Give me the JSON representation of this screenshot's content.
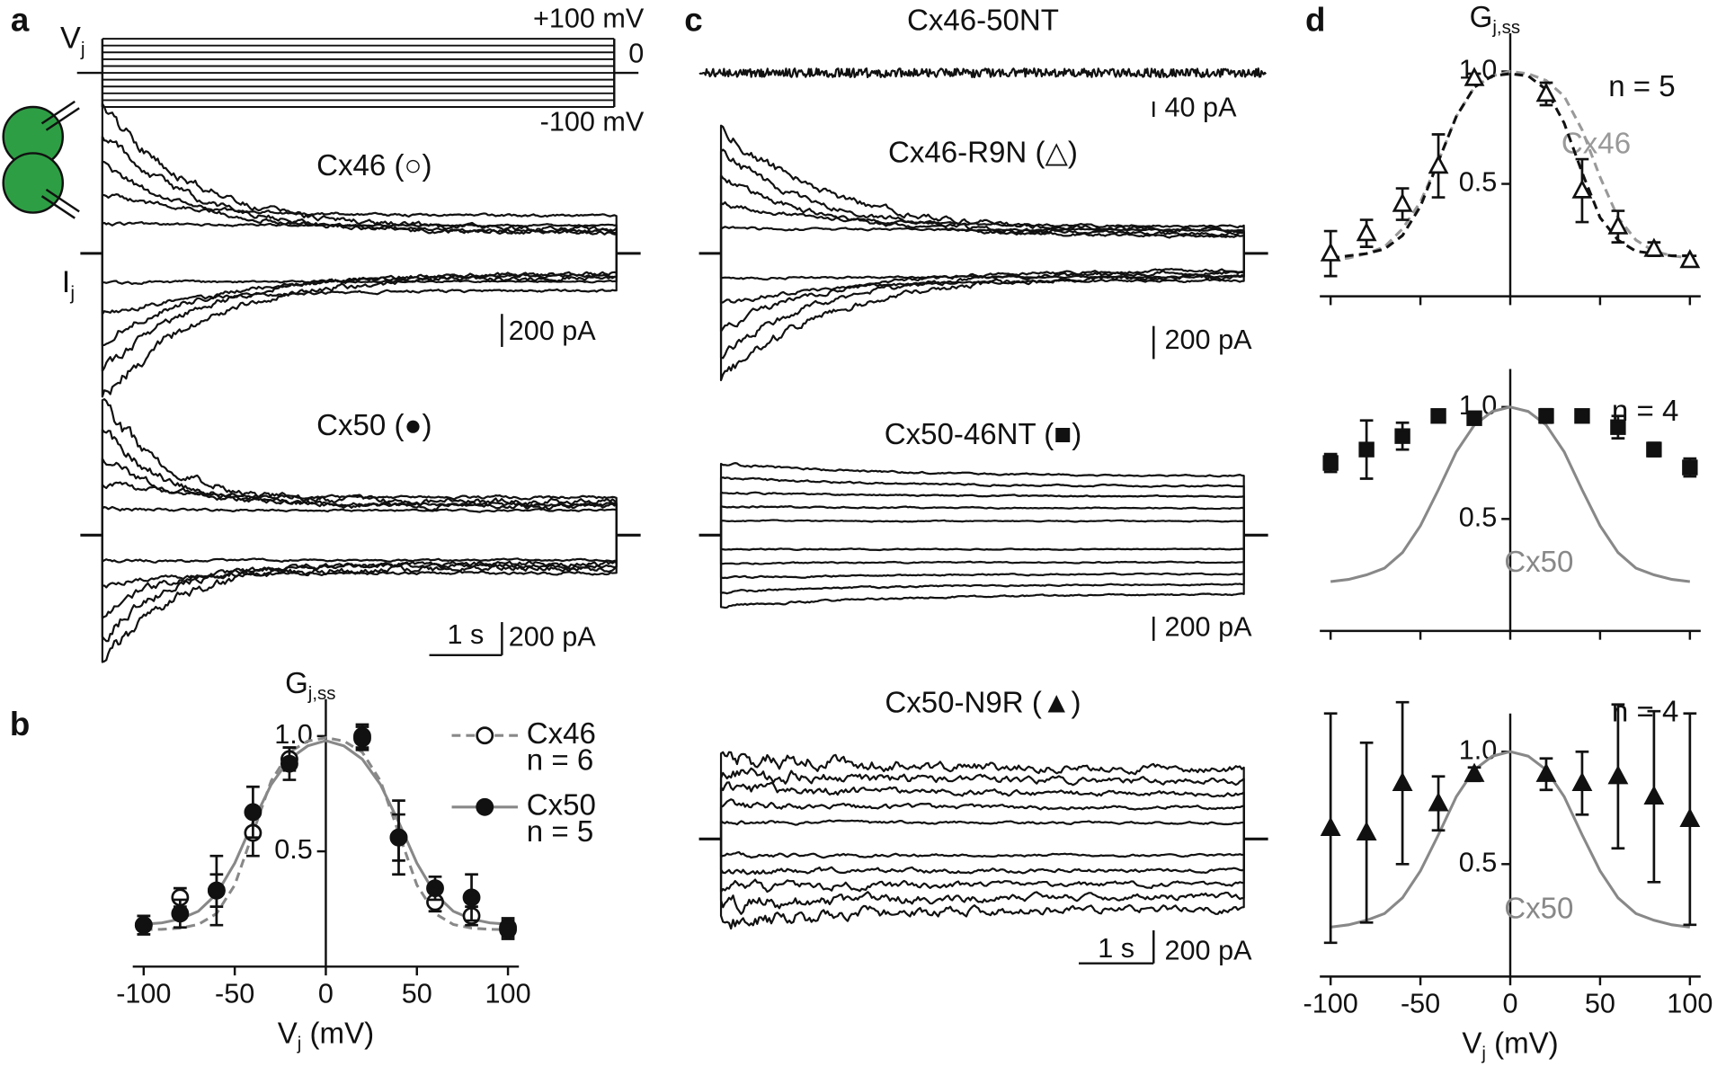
{
  "figure": {
    "panel_labels": [
      "a",
      "b",
      "c",
      "d"
    ],
    "protocol": {
      "label": {
        "main": "V",
        "sub": "j"
      },
      "top": "+100 mV",
      "zero": "0",
      "bottom": "-100 mV"
    },
    "current_label": {
      "main": "I",
      "sub": "j"
    },
    "traces": [
      {
        "title": "Cx46 (○)",
        "scale_y": "200 pA"
      },
      {
        "title": "Cx50 (●)",
        "scale_y": "200 pA",
        "scale_x": "1 s"
      },
      {
        "title": "Cx46-50NT",
        "scale_y": "40 pA"
      },
      {
        "title": "Cx46-R9N (△)",
        "scale_y": "200 pA"
      },
      {
        "title": "Cx50-46NT (■)",
        "scale_y": "200 pA"
      },
      {
        "title": "Cx50-N9R (▲)",
        "scale_y": "200 pA",
        "scale_x": "1 s"
      }
    ]
  },
  "chart_data": [
    {
      "type": "scatter",
      "ylabel": {
        "main": "G",
        "sub": "j,ss"
      },
      "xlabel": {
        "main": "V",
        "sub": "j",
        "rest": " (mV)"
      },
      "xlim": [
        -106,
        106
      ],
      "ylim": [
        0,
        1.16
      ],
      "xticks": [
        -100,
        -50,
        0,
        50,
        100
      ],
      "yticks": [
        0.5,
        {
          "value": 1,
          "label": "1.0"
        }
      ],
      "xtick_labels": true,
      "legend": "upper right",
      "x": [
        -100,
        -80,
        -60,
        -40,
        -20,
        20,
        40,
        60,
        80,
        100
      ],
      "fit_x": [
        -100,
        -90,
        -80,
        -70,
        -60,
        -50,
        -40,
        -30,
        -20,
        -10,
        0,
        10,
        20,
        30,
        40,
        50,
        60,
        70,
        80,
        90,
        100
      ],
      "series": [
        {
          "name": "Cx46",
          "n": "n = 6",
          "marker": "open-circle",
          "color": "#111111",
          "values": [
            0.18,
            0.3,
            0.33,
            0.58,
            0.9,
            0.99,
            0.56,
            0.28,
            0.22,
            0.17
          ],
          "errors": [
            0.04,
            0.04,
            0.07,
            0.1,
            0.05,
            0.05,
            0.1,
            0.04,
            0.04,
            0.04
          ],
          "fit": [
            0.161,
            0.162,
            0.167,
            0.183,
            0.23,
            0.354,
            0.58,
            0.806,
            0.93,
            0.978,
            0.993,
            0.978,
            0.93,
            0.806,
            0.58,
            0.354,
            0.23,
            0.183,
            0.167,
            0.162,
            0.161
          ],
          "fit_color": "#888888",
          "fit_dash": true
        },
        {
          "name": "Cx50",
          "n": "n = 5",
          "marker": "filled-circle",
          "color": "#111111",
          "values": [
            0.18,
            0.23,
            0.33,
            0.67,
            0.88,
            1.0,
            0.56,
            0.34,
            0.3,
            0.16
          ],
          "errors": [
            0.04,
            0.06,
            0.15,
            0.11,
            0.07,
            0.05,
            0.16,
            0.05,
            0.1,
            0.04
          ],
          "fit": [
            0.184,
            0.19,
            0.206,
            0.24,
            0.315,
            0.449,
            0.627,
            0.79,
            0.9,
            0.957,
            0.98,
            0.957,
            0.9,
            0.79,
            0.627,
            0.449,
            0.315,
            0.24,
            0.206,
            0.19,
            0.184
          ],
          "fit_color": "#888888",
          "fit_dash": false
        }
      ]
    },
    {
      "type": "scatter",
      "ylabel": {
        "main": "G",
        "sub": "j,ss"
      },
      "xlim": [
        -106,
        106
      ],
      "ylim": [
        0,
        1.17
      ],
      "xticks": [
        -100,
        -50,
        0,
        50,
        100
      ],
      "yticks": [
        0.5,
        {
          "value": 1,
          "label": "1.0"
        }
      ],
      "xtick_labels": false,
      "annotation": "n = 5",
      "x": [
        -100,
        -80,
        -60,
        -40,
        -20,
        20,
        40,
        60,
        80,
        100
      ],
      "fit_x": [
        -100,
        -90,
        -80,
        -70,
        -60,
        -50,
        -40,
        -30,
        -20,
        -10,
        0,
        10,
        20,
        30,
        40,
        50,
        60,
        70,
        80,
        90,
        100
      ],
      "series": [
        {
          "marker": "open-triangle",
          "color": "#111111",
          "values": [
            0.19,
            0.28,
            0.41,
            0.58,
            0.97,
            0.9,
            0.47,
            0.31,
            0.21,
            0.16
          ],
          "errors": [
            0.1,
            0.06,
            0.07,
            0.14,
            0.02,
            0.05,
            0.14,
            0.07,
            0.03,
            0.02
          ]
        }
      ],
      "fits": [
        {
          "label": "Cx46",
          "color": "#999999",
          "dash": true,
          "values": [
            0.16,
            0.17,
            0.19,
            0.22,
            0.3,
            0.42,
            0.6,
            0.8,
            0.93,
            0.98,
            1.0,
            0.99,
            0.96,
            0.89,
            0.74,
            0.53,
            0.35,
            0.25,
            0.2,
            0.18,
            0.17
          ]
        },
        {
          "color": "#111111",
          "dash": true,
          "values": [
            0.17,
            0.18,
            0.19,
            0.21,
            0.27,
            0.4,
            0.6,
            0.8,
            0.93,
            0.98,
            0.99,
            0.98,
            0.92,
            0.77,
            0.55,
            0.35,
            0.25,
            0.2,
            0.19,
            0.18,
            0.18
          ]
        }
      ]
    },
    {
      "type": "scatter",
      "xlim": [
        -106,
        106
      ],
      "ylim": [
        0,
        1.17
      ],
      "xticks": [
        -100,
        -50,
        0,
        50,
        100
      ],
      "yticks": [
        0.5,
        {
          "value": 1,
          "label": "1.0"
        }
      ],
      "xtick_labels": false,
      "annotation": "n = 4",
      "x": [
        -100,
        -80,
        -60,
        -40,
        -20,
        20,
        40,
        60,
        80,
        100
      ],
      "fit_x": [
        -100,
        -90,
        -80,
        -70,
        -60,
        -50,
        -40,
        -30,
        -20,
        -10,
        0,
        10,
        20,
        30,
        40,
        50,
        60,
        70,
        80,
        90,
        100
      ],
      "series": [
        {
          "marker": "filled-square",
          "color": "#111111",
          "values": [
            0.75,
            0.81,
            0.87,
            0.96,
            0.95,
            0.96,
            0.96,
            0.91,
            0.81,
            0.73
          ],
          "errors": [
            0.04,
            0.13,
            0.06,
            0.01,
            0.01,
            0.03,
            0.01,
            0.05,
            0.03,
            0.04
          ]
        }
      ],
      "fits": [
        {
          "label": "Cx50",
          "color": "#888888",
          "dash": false,
          "values": [
            0.22,
            0.23,
            0.25,
            0.28,
            0.35,
            0.47,
            0.63,
            0.8,
            0.92,
            0.98,
            1.0,
            0.98,
            0.92,
            0.8,
            0.63,
            0.47,
            0.35,
            0.28,
            0.25,
            0.23,
            0.22
          ]
        }
      ]
    },
    {
      "type": "scatter",
      "xlabel": {
        "main": "V",
        "sub": "j",
        "rest": " (mV)"
      },
      "xlim": [
        -106,
        106
      ],
      "ylim": [
        0,
        1.17
      ],
      "xticks": [
        -100,
        -50,
        0,
        50,
        100
      ],
      "yticks": [
        0.5,
        {
          "value": 1,
          "label": "1.0"
        }
      ],
      "xtick_labels": true,
      "annotation": "n = 4",
      "x": [
        -100,
        -80,
        -60,
        -40,
        -20,
        20,
        40,
        60,
        80,
        100
      ],
      "fit_x": [
        -100,
        -90,
        -80,
        -70,
        -60,
        -50,
        -40,
        -30,
        -20,
        -10,
        0,
        10,
        20,
        30,
        40,
        50,
        60,
        70,
        80,
        90,
        100
      ],
      "series": [
        {
          "marker": "filled-triangle",
          "color": "#111111",
          "values": [
            0.66,
            0.64,
            0.86,
            0.77,
            0.9,
            0.9,
            0.86,
            0.89,
            0.8,
            0.7
          ],
          "errors": [
            0.51,
            0.4,
            0.36,
            0.12,
            0.03,
            0.07,
            0.14,
            0.32,
            0.38,
            0.47
          ]
        }
      ],
      "fits": [
        {
          "label": "Cx50",
          "color": "#888888",
          "dash": false,
          "values": [
            0.22,
            0.23,
            0.25,
            0.28,
            0.35,
            0.47,
            0.63,
            0.8,
            0.92,
            0.98,
            1.0,
            0.98,
            0.92,
            0.8,
            0.63,
            0.47,
            0.35,
            0.28,
            0.25,
            0.23,
            0.22
          ]
        }
      ]
    }
  ]
}
